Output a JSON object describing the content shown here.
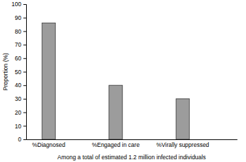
{
  "chart_data": {
    "type": "bar",
    "categories": [
      "%Diagnosed",
      "%Engaged in care",
      "%Virally suppressed"
    ],
    "values": [
      86,
      40,
      30
    ],
    "color": "#9c9c9c",
    "ylim": [
      0,
      100
    ],
    "yticks": [
      0,
      10,
      20,
      30,
      40,
      50,
      60,
      70,
      80,
      90,
      100
    ],
    "y_label": "Proportion (%)",
    "x_label": "Among a total of estimated 1.2 million infected individuals",
    "grid": false
  }
}
